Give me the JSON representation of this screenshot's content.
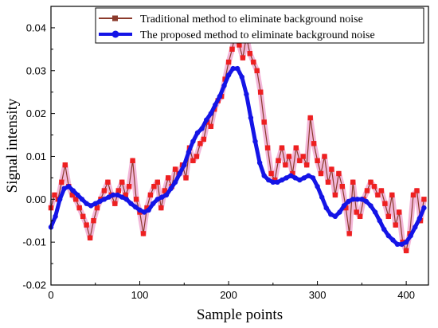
{
  "chart_data": {
    "type": "line",
    "xlabel": "Sample points",
    "ylabel": "Signal intensity",
    "xlim": [
      0,
      425
    ],
    "ylim": [
      -0.02,
      0.045
    ],
    "xticks": [
      0,
      100,
      200,
      300,
      400
    ],
    "xtick_labels": [
      "0",
      "100",
      "200",
      "300",
      "400"
    ],
    "yticks": [
      -0.02,
      -0.01,
      0.0,
      0.01,
      0.02,
      0.03,
      0.04
    ],
    "ytick_labels": [
      "-0.02",
      "-0.01",
      "0.00",
      "0.01",
      "0.02",
      "0.03",
      "0.04"
    ],
    "grid": false,
    "legend_position": "top-right",
    "series": [
      {
        "name": "Traditional method to eliminate background noise",
        "color": "#ee2020",
        "line_color": "#8b3a2b",
        "marker": "square",
        "x": [
          0,
          4,
          8,
          12,
          16,
          20,
          24,
          28,
          32,
          36,
          40,
          44,
          48,
          52,
          56,
          60,
          64,
          68,
          72,
          76,
          80,
          84,
          88,
          92,
          96,
          100,
          104,
          108,
          112,
          116,
          120,
          124,
          128,
          132,
          136,
          140,
          144,
          148,
          152,
          156,
          160,
          164,
          168,
          172,
          176,
          180,
          184,
          188,
          192,
          196,
          200,
          204,
          208,
          212,
          216,
          220,
          224,
          228,
          232,
          236,
          240,
          244,
          248,
          252,
          256,
          260,
          264,
          268,
          272,
          276,
          280,
          284,
          288,
          292,
          296,
          300,
          304,
          308,
          312,
          316,
          320,
          324,
          328,
          332,
          336,
          340,
          344,
          348,
          352,
          356,
          360,
          364,
          368,
          372,
          376,
          380,
          384,
          388,
          392,
          396,
          400,
          404,
          408,
          412,
          416,
          420
        ],
        "y": [
          -0.002,
          0.001,
          0.0,
          0.004,
          0.008,
          0.003,
          0.001,
          0.0,
          -0.002,
          -0.004,
          -0.006,
          -0.009,
          -0.005,
          -0.002,
          0.0,
          0.002,
          0.004,
          0.001,
          -0.001,
          0.002,
          0.004,
          0.001,
          0.003,
          0.009,
          0.0,
          -0.003,
          -0.008,
          -0.002,
          0.001,
          0.003,
          0.004,
          -0.002,
          0.002,
          0.005,
          0.003,
          0.007,
          0.006,
          0.008,
          0.005,
          0.012,
          0.009,
          0.01,
          0.013,
          0.014,
          0.018,
          0.017,
          0.021,
          0.023,
          0.024,
          0.028,
          0.032,
          0.035,
          0.039,
          0.036,
          0.033,
          0.038,
          0.034,
          0.032,
          0.03,
          0.025,
          0.018,
          0.012,
          0.006,
          0.0045,
          0.009,
          0.012,
          0.008,
          0.01,
          0.006,
          0.012,
          0.009,
          0.01,
          0.008,
          0.019,
          0.013,
          0.009,
          0.006,
          0.01,
          0.004,
          0.007,
          0.001,
          0.006,
          0.003,
          -0.002,
          -0.008,
          0.004,
          -0.003,
          -0.004,
          0.0,
          0.002,
          0.004,
          0.003,
          0.001,
          0.002,
          -0.001,
          -0.004,
          0.001,
          -0.006,
          -0.003,
          -0.01,
          -0.012,
          -0.008,
          0.001,
          0.002,
          -0.005,
          0.0
        ]
      },
      {
        "name": "The proposed method to eliminate background noise",
        "color": "#1414e6",
        "marker": "circle",
        "x": [
          0,
          5,
          10,
          15,
          20,
          25,
          30,
          35,
          40,
          45,
          50,
          55,
          60,
          65,
          70,
          75,
          80,
          85,
          90,
          95,
          100,
          105,
          110,
          115,
          120,
          125,
          130,
          135,
          140,
          145,
          150,
          155,
          160,
          165,
          170,
          175,
          180,
          185,
          190,
          195,
          200,
          205,
          210,
          215,
          220,
          225,
          230,
          235,
          240,
          245,
          250,
          255,
          260,
          265,
          270,
          275,
          280,
          285,
          290,
          295,
          300,
          305,
          310,
          315,
          320,
          325,
          330,
          335,
          340,
          345,
          350,
          355,
          360,
          365,
          370,
          375,
          380,
          385,
          390,
          395,
          400,
          405,
          410,
          415,
          420
        ],
        "y": [
          -0.0065,
          -0.004,
          0.0,
          0.0025,
          0.003,
          0.002,
          0.001,
          0.0,
          -0.001,
          -0.0015,
          -0.001,
          -0.0005,
          0.0,
          0.0005,
          0.001,
          0.001,
          0.0005,
          0.0,
          -0.001,
          -0.0018,
          -0.0025,
          -0.003,
          -0.0025,
          -0.001,
          0.0,
          0.0005,
          0.001,
          0.0025,
          0.004,
          0.006,
          0.008,
          0.011,
          0.0135,
          0.0155,
          0.0165,
          0.0185,
          0.02,
          0.022,
          0.024,
          0.0265,
          0.029,
          0.0305,
          0.0305,
          0.0285,
          0.0245,
          0.019,
          0.0135,
          0.0085,
          0.0055,
          0.0045,
          0.004,
          0.004,
          0.0045,
          0.005,
          0.0055,
          0.005,
          0.0045,
          0.005,
          0.0055,
          0.005,
          0.003,
          0.0005,
          -0.002,
          -0.0035,
          -0.004,
          -0.003,
          -0.0015,
          -0.0005,
          0.0,
          0.0,
          0.0,
          -0.0005,
          -0.0015,
          -0.003,
          -0.005,
          -0.007,
          -0.0085,
          -0.0095,
          -0.0105,
          -0.0105,
          -0.01,
          -0.0085,
          -0.0065,
          -0.0045,
          -0.002
        ]
      }
    ]
  }
}
